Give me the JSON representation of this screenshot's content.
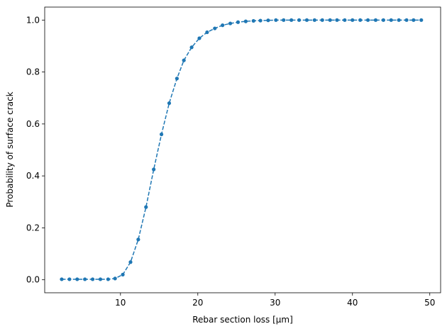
{
  "chart_data": {
    "type": "line",
    "xlabel": "Rebar section loss [μm]",
    "ylabel": "Probability of surface crack",
    "x": [
      2.4,
      3.4,
      4.4,
      5.4,
      6.4,
      7.4,
      8.4,
      9.3,
      10.3,
      11.3,
      12.3,
      13.3,
      14.3,
      15.3,
      16.3,
      17.3,
      18.2,
      19.2,
      20.2,
      21.2,
      22.2,
      23.2,
      24.2,
      25.2,
      26.2,
      27.2,
      28.1,
      29.1,
      30.1,
      31.1,
      32.1,
      33.1,
      34.1,
      35.1,
      36.1,
      37.1,
      38.0,
      39.0,
      40.0,
      41.0,
      42.0,
      43.0,
      44.0,
      45.0,
      46.0,
      47.0,
      47.9,
      48.9
    ],
    "series": [
      {
        "color": "#1f77b4",
        "values": [
          0.002,
          0.002,
          0.002,
          0.002,
          0.002,
          0.002,
          0.002,
          0.005,
          0.02,
          0.068,
          0.155,
          0.28,
          0.425,
          0.56,
          0.68,
          0.775,
          0.845,
          0.895,
          0.93,
          0.953,
          0.968,
          0.98,
          0.987,
          0.992,
          0.995,
          0.997,
          0.998,
          0.999,
          1.0,
          1.0,
          1.0,
          1.0,
          1.0,
          1.0,
          1.0,
          1.0,
          1.0,
          1.0,
          1.0,
          1.0,
          1.0,
          1.0,
          1.0,
          1.0,
          1.0,
          1.0,
          1.0,
          1.0
        ]
      }
    ],
    "xlim": [
      0.2,
      51.4
    ],
    "ylim": [
      -0.05,
      1.05
    ],
    "xticks": [
      10,
      20,
      30,
      40,
      50
    ],
    "yticks": [
      {
        "value": 0,
        "label": "0.0"
      },
      0.2,
      0.4,
      0.6,
      0.8,
      {
        "value": 1,
        "label": "1.0"
      }
    ],
    "line_style": "dashed",
    "marker": "circle"
  }
}
